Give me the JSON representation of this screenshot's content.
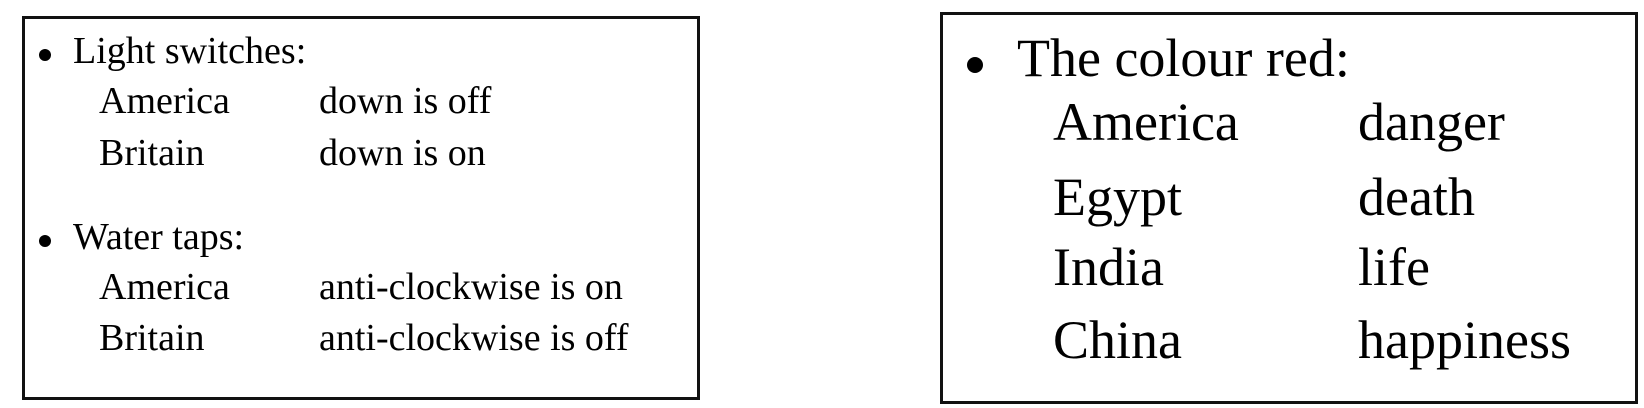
{
  "left_panel": {
    "sections": [
      {
        "heading": "Light switches:",
        "rows": [
          {
            "country": "America",
            "meaning": "down is off"
          },
          {
            "country": "Britain",
            "meaning": "down is on"
          }
        ]
      },
      {
        "heading": "Water taps:",
        "rows": [
          {
            "country": "America",
            "meaning": "anti-clockwise is on"
          },
          {
            "country": "Britain",
            "meaning": "anti-clockwise is off"
          }
        ]
      }
    ]
  },
  "right_panel": {
    "heading": "The colour red:",
    "rows": [
      {
        "country": "America",
        "meaning": "danger"
      },
      {
        "country": "Egypt",
        "meaning": "death"
      },
      {
        "country": "India",
        "meaning": "life"
      },
      {
        "country": "China",
        "meaning": "happiness"
      }
    ]
  }
}
